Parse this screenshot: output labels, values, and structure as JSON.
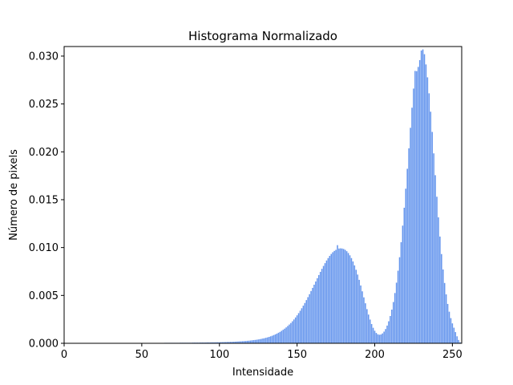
{
  "chart_data": {
    "type": "bar",
    "title": "Histograma Normalizado",
    "xlabel": "Intensidade",
    "ylabel": "Número de pixels",
    "xlim": [
      0,
      256
    ],
    "ylim": [
      0,
      0.031
    ],
    "xticks": [
      0,
      50,
      100,
      150,
      200,
      250
    ],
    "yticks": [
      0.0,
      0.005,
      0.01,
      0.015,
      0.02,
      0.025,
      0.03
    ],
    "xtick_labels": [
      "0",
      "50",
      "100",
      "150",
      "200",
      "250"
    ],
    "ytick_labels": [
      "0.000",
      "0.005",
      "0.010",
      "0.015",
      "0.020",
      "0.025",
      "0.030"
    ],
    "bar_color": "#6495ed",
    "grid": false,
    "x": [
      0,
      1,
      2,
      3,
      4,
      5,
      6,
      7,
      8,
      9,
      10,
      11,
      12,
      13,
      14,
      15,
      16,
      17,
      18,
      19,
      20,
      21,
      22,
      23,
      24,
      25,
      26,
      27,
      28,
      29,
      30,
      31,
      32,
      33,
      34,
      35,
      36,
      37,
      38,
      39,
      40,
      41,
      42,
      43,
      44,
      45,
      46,
      47,
      48,
      49,
      50,
      51,
      52,
      53,
      54,
      55,
      56,
      57,
      58,
      59,
      60,
      61,
      62,
      63,
      64,
      65,
      66,
      67,
      68,
      69,
      70,
      71,
      72,
      73,
      74,
      75,
      76,
      77,
      78,
      79,
      80,
      81,
      82,
      83,
      84,
      85,
      86,
      87,
      88,
      89,
      90,
      91,
      92,
      93,
      94,
      95,
      96,
      97,
      98,
      99,
      100,
      101,
      102,
      103,
      104,
      105,
      106,
      107,
      108,
      109,
      110,
      111,
      112,
      113,
      114,
      115,
      116,
      117,
      118,
      119,
      120,
      121,
      122,
      123,
      124,
      125,
      126,
      127,
      128,
      129,
      130,
      131,
      132,
      133,
      134,
      135,
      136,
      137,
      138,
      139,
      140,
      141,
      142,
      143,
      144,
      145,
      146,
      147,
      148,
      149,
      150,
      151,
      152,
      153,
      154,
      155,
      156,
      157,
      158,
      159,
      160,
      161,
      162,
      163,
      164,
      165,
      166,
      167,
      168,
      169,
      170,
      171,
      172,
      173,
      174,
      175,
      176,
      177,
      178,
      179,
      180,
      181,
      182,
      183,
      184,
      185,
      186,
      187,
      188,
      189,
      190,
      191,
      192,
      193,
      194,
      195,
      196,
      197,
      198,
      199,
      200,
      201,
      202,
      203,
      204,
      205,
      206,
      207,
      208,
      209,
      210,
      211,
      212,
      213,
      214,
      215,
      216,
      217,
      218,
      219,
      220,
      221,
      222,
      223,
      224,
      225,
      226,
      227,
      228,
      229,
      230,
      231,
      232,
      233,
      234,
      235,
      236,
      237,
      238,
      239,
      240,
      241,
      242,
      243,
      244,
      245,
      246,
      247,
      248,
      249,
      250,
      251,
      252,
      253,
      254,
      255
    ],
    "values": [
      0,
      0,
      0,
      0,
      0,
      0,
      0,
      0,
      0,
      0,
      0,
      0,
      0,
      0,
      0,
      0,
      0,
      0,
      0,
      0,
      0,
      0,
      0,
      0,
      0,
      0,
      0,
      0,
      0,
      0,
      0,
      0,
      0,
      0,
      0,
      0,
      0,
      0,
      0,
      0,
      0,
      0,
      0,
      0,
      0,
      0,
      0,
      0,
      0,
      0,
      3e-05,
      3e-05,
      3e-05,
      3e-05,
      3e-05,
      3e-05,
      3e-05,
      3e-05,
      3e-05,
      3e-05,
      4e-05,
      4e-05,
      4e-05,
      4e-05,
      4e-05,
      5e-05,
      5e-05,
      5e-05,
      5e-05,
      5e-05,
      5e-05,
      5e-05,
      5e-05,
      5e-05,
      5e-05,
      6e-05,
      6e-05,
      6e-05,
      6e-05,
      6e-05,
      6e-05,
      6e-05,
      6e-05,
      7e-05,
      7e-05,
      7e-05,
      7e-05,
      7e-05,
      8e-05,
      8e-05,
      8e-05,
      8e-05,
      9e-05,
      9e-05,
      9e-05,
      0.0001,
      0.0001,
      0.0001,
      0.00011,
      0.00011,
      0.00011,
      0.00012,
      0.00012,
      0.00013,
      0.00013,
      0.00014,
      0.00014,
      0.00015,
      0.00015,
      0.00016,
      0.00017,
      0.00018,
      0.00019,
      0.0002,
      0.00021,
      0.00022,
      0.00023,
      0.00024,
      0.00026,
      0.00027,
      0.00029,
      0.00031,
      0.00033,
      0.00035,
      0.00037,
      0.0004,
      0.00043,
      0.00046,
      0.0005,
      0.00053,
      0.00058,
      0.00062,
      0.00067,
      0.00073,
      0.00079,
      0.00086,
      0.00093,
      0.00101,
      0.0011,
      0.00119,
      0.0013,
      0.00141,
      0.00153,
      0.00166,
      0.00181,
      0.00196,
      0.00212,
      0.0023,
      0.00249,
      0.0027,
      0.00292,
      0.00315,
      0.0034,
      0.00366,
      0.00393,
      0.00421,
      0.00451,
      0.00482,
      0.00513,
      0.00546,
      0.00579,
      0.00612,
      0.00646,
      0.0068,
      0.00713,
      0.00746,
      0.00778,
      0.00808,
      0.00837,
      0.00865,
      0.0089,
      0.00913,
      0.00933,
      0.00951,
      0.00965,
      0.00976,
      0.01025,
      0.0099,
      0.00992,
      0.0099,
      0.00985,
      0.00976,
      0.00962,
      0.00943,
      0.00919,
      0.0089,
      0.00855,
      0.00814,
      0.00768,
      0.00718,
      0.00663,
      0.00604,
      0.00543,
      0.0048,
      0.00418,
      0.00357,
      0.003,
      0.00248,
      0.00201,
      0.00162,
      0.00131,
      0.00108,
      0.00094,
      0.00089,
      0.00092,
      0.00103,
      0.00122,
      0.00149,
      0.00185,
      0.0023,
      0.00285,
      0.00352,
      0.00431,
      0.00525,
      0.00633,
      0.00758,
      0.00899,
      0.01056,
      0.01229,
      0.01416,
      0.01615,
      0.01823,
      0.02037,
      0.02251,
      0.02461,
      0.02661,
      0.02845,
      0.02843,
      0.02887,
      0.02958,
      0.03058,
      0.0307,
      0.0302,
      0.02913,
      0.02778,
      0.02611,
      0.02419,
      0.02208,
      0.01984,
      0.01756,
      0.01531,
      0.01316,
      0.01115,
      0.00932,
      0.00771,
      0.0063,
      0.00511,
      0.00411,
      0.0033,
      0.00263,
      0.00208,
      0.00163,
      0.00117,
      0.00073,
      0.00035,
      0.0001
    ]
  }
}
